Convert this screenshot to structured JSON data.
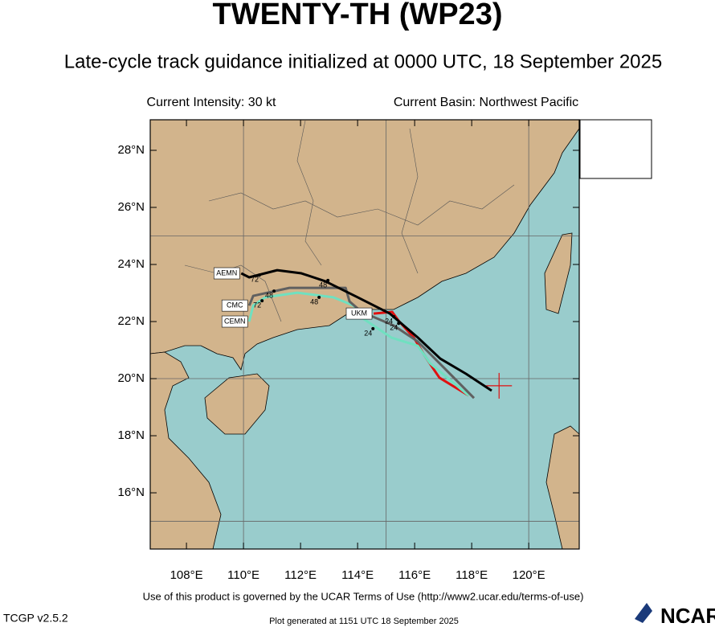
{
  "chart_data": {
    "type": "line",
    "title": "TWENTY-TH (WP23)",
    "subtitle": "Late-cycle track guidance initialized at 0000 UTC, 18 September 2025",
    "info_left": "Current Intensity: 30 kt",
    "info_right": "Current Basin: Northwest Pacific",
    "xlim": [
      106.73,
      121.77
    ],
    "ylim": [
      14.03,
      29.07
    ],
    "xticks": [
      {
        "value": 108,
        "label": "108°E"
      },
      {
        "value": 110,
        "label": "110°E"
      },
      {
        "value": 112,
        "label": "112°E"
      },
      {
        "value": 114,
        "label": "114°E"
      },
      {
        "value": 116,
        "label": "116°E"
      },
      {
        "value": 118,
        "label": "118°E"
      },
      {
        "value": 120,
        "label": "120°E"
      }
    ],
    "yticks": [
      {
        "value": 16,
        "label": "16°N"
      },
      {
        "value": 18,
        "label": "18°N"
      },
      {
        "value": 20,
        "label": "20°N"
      },
      {
        "value": 22,
        "label": "22°N"
      },
      {
        "value": 24,
        "label": "24°N"
      },
      {
        "value": 26,
        "label": "26°N"
      },
      {
        "value": 28,
        "label": "28°N"
      }
    ],
    "grid_lons": [
      110,
      115,
      120
    ],
    "grid_lats": [
      15,
      20,
      25
    ],
    "current_position": [
      118.96,
      19.75
    ],
    "series": [
      {
        "name": "UKM",
        "color": "#e01010",
        "x": [
          117.89,
          116.87,
          116.68,
          116.31,
          115.97,
          115.46,
          115.21,
          114.56
        ],
        "values": [
          19.41,
          20.03,
          20.31,
          20.87,
          21.44,
          22.0,
          22.34,
          22.28
        ]
      },
      {
        "name": "CEMN",
        "color": "#70e0c0",
        "x": [
          117.89,
          116.54,
          116.11,
          115.18,
          114.14,
          113.86,
          113.15,
          111.89,
          110.76,
          110.34,
          110.2
        ],
        "values": [
          19.41,
          20.54,
          21.15,
          21.44,
          22.14,
          22.56,
          22.85,
          23.01,
          22.85,
          22.56,
          22.0
        ]
      },
      {
        "name": "CMC",
        "color": "#606060",
        "x": [
          118.08,
          117.1,
          116.11,
          115.27,
          114.14,
          113.72,
          113.58,
          111.61,
          110.34,
          110.2
        ],
        "values": [
          19.32,
          20.31,
          21.3,
          21.86,
          22.34,
          22.7,
          23.18,
          23.18,
          22.9,
          22.56
        ]
      },
      {
        "name": "AEMN",
        "color": "#000000",
        "x": [
          118.7,
          117.8,
          116.9,
          116.11,
          115.13,
          114.0,
          112.87,
          112.03,
          111.18,
          110.2,
          109.92
        ],
        "values": [
          19.58,
          20.17,
          20.7,
          21.44,
          22.28,
          22.85,
          23.41,
          23.69,
          23.8,
          23.55,
          23.69
        ]
      }
    ],
    "annotations": [
      {
        "text": "72",
        "x": 110.39,
        "y": 23.46
      },
      {
        "text": "48",
        "x": 112.79,
        "y": 23.27
      },
      {
        "text": "48",
        "x": 112.48,
        "y": 22.68
      },
      {
        "text": "48",
        "x": 110.9,
        "y": 22.9
      },
      {
        "text": "72",
        "x": 110.48,
        "y": 22.56
      },
      {
        "text": "24",
        "x": 114.37,
        "y": 21.58
      },
      {
        "text": "24",
        "x": 115.27,
        "y": 21.77
      },
      {
        "text": "24",
        "x": 115.1,
        "y": 22.0
      }
    ],
    "terms": "Use of this product is governed by the UCAR Terms of Use (http://www2.ucar.edu/terms-of-use)",
    "version": "TCGP v2.5.2",
    "generated": "Plot generated at 1151 UTC   18 September 2025",
    "logo": "NCAR"
  }
}
